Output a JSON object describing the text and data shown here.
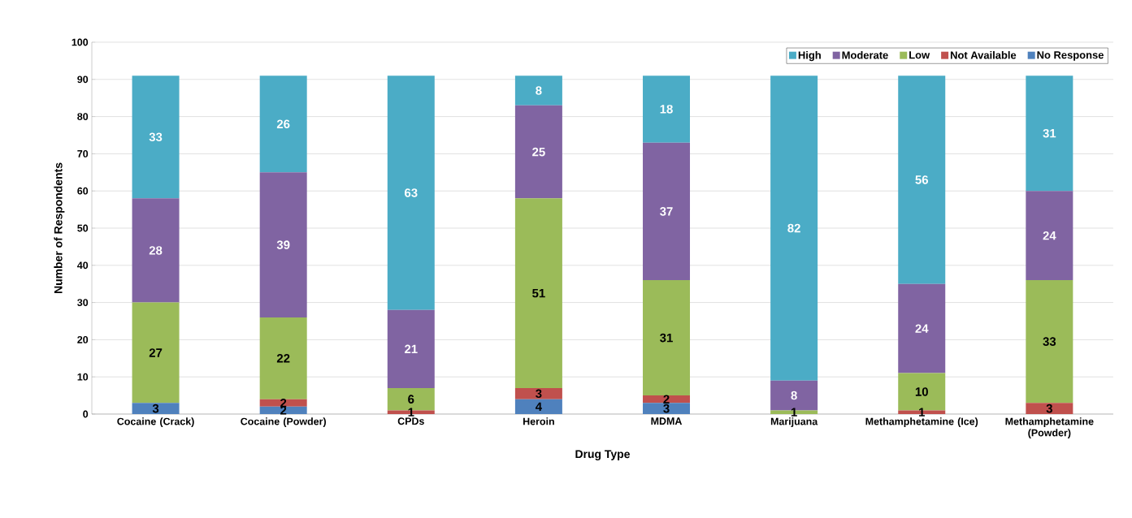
{
  "chart_data": {
    "type": "bar",
    "stacked": true,
    "xlabel": "Drug Type",
    "ylabel": "Number of Respondents",
    "categories": [
      "Cocaine (Crack)",
      "Cocaine (Powder)",
      "CPDs",
      "Heroin",
      "MDMA",
      "Marijuana",
      "Methamphetamine (Ice)",
      "Methamphetamine (Powder)"
    ],
    "series": [
      {
        "name": "No Response",
        "color": "#4f81bd",
        "values": [
          3,
          2,
          0,
          4,
          3,
          0,
          0,
          0
        ],
        "value_labels": [
          "3",
          "2",
          null,
          "4",
          "3",
          null,
          null,
          null
        ]
      },
      {
        "name": "Not Available",
        "color": "#c0504d",
        "values": [
          0,
          2,
          1,
          3,
          2,
          0,
          1,
          3
        ],
        "value_labels": [
          null,
          "2",
          "1",
          "3",
          "2",
          null,
          "1",
          "3"
        ]
      },
      {
        "name": "Low",
        "color": "#9bbb59",
        "values": [
          27,
          22,
          6,
          51,
          31,
          1,
          10,
          33
        ],
        "value_labels": [
          "27",
          "22",
          "6",
          "51",
          "31",
          "1",
          "10",
          "33"
        ]
      },
      {
        "name": "Moderate",
        "color": "#8064a2",
        "values": [
          28,
          39,
          21,
          25,
          37,
          8,
          24,
          24
        ],
        "value_labels": [
          "28",
          "39",
          "21",
          "25",
          "37",
          "8",
          "24",
          "24"
        ]
      },
      {
        "name": "High",
        "color": "#4bacc6",
        "values": [
          33,
          26,
          63,
          8,
          18,
          82,
          56,
          31
        ],
        "value_labels": [
          "33",
          "26",
          "63",
          "8",
          "18",
          "82",
          "56",
          "31"
        ]
      }
    ],
    "ylim": [
      0,
      100
    ],
    "yticks": [
      0,
      10,
      20,
      30,
      40,
      50,
      60,
      70,
      80,
      90,
      100
    ],
    "grid": "y",
    "legend": "top right"
  }
}
